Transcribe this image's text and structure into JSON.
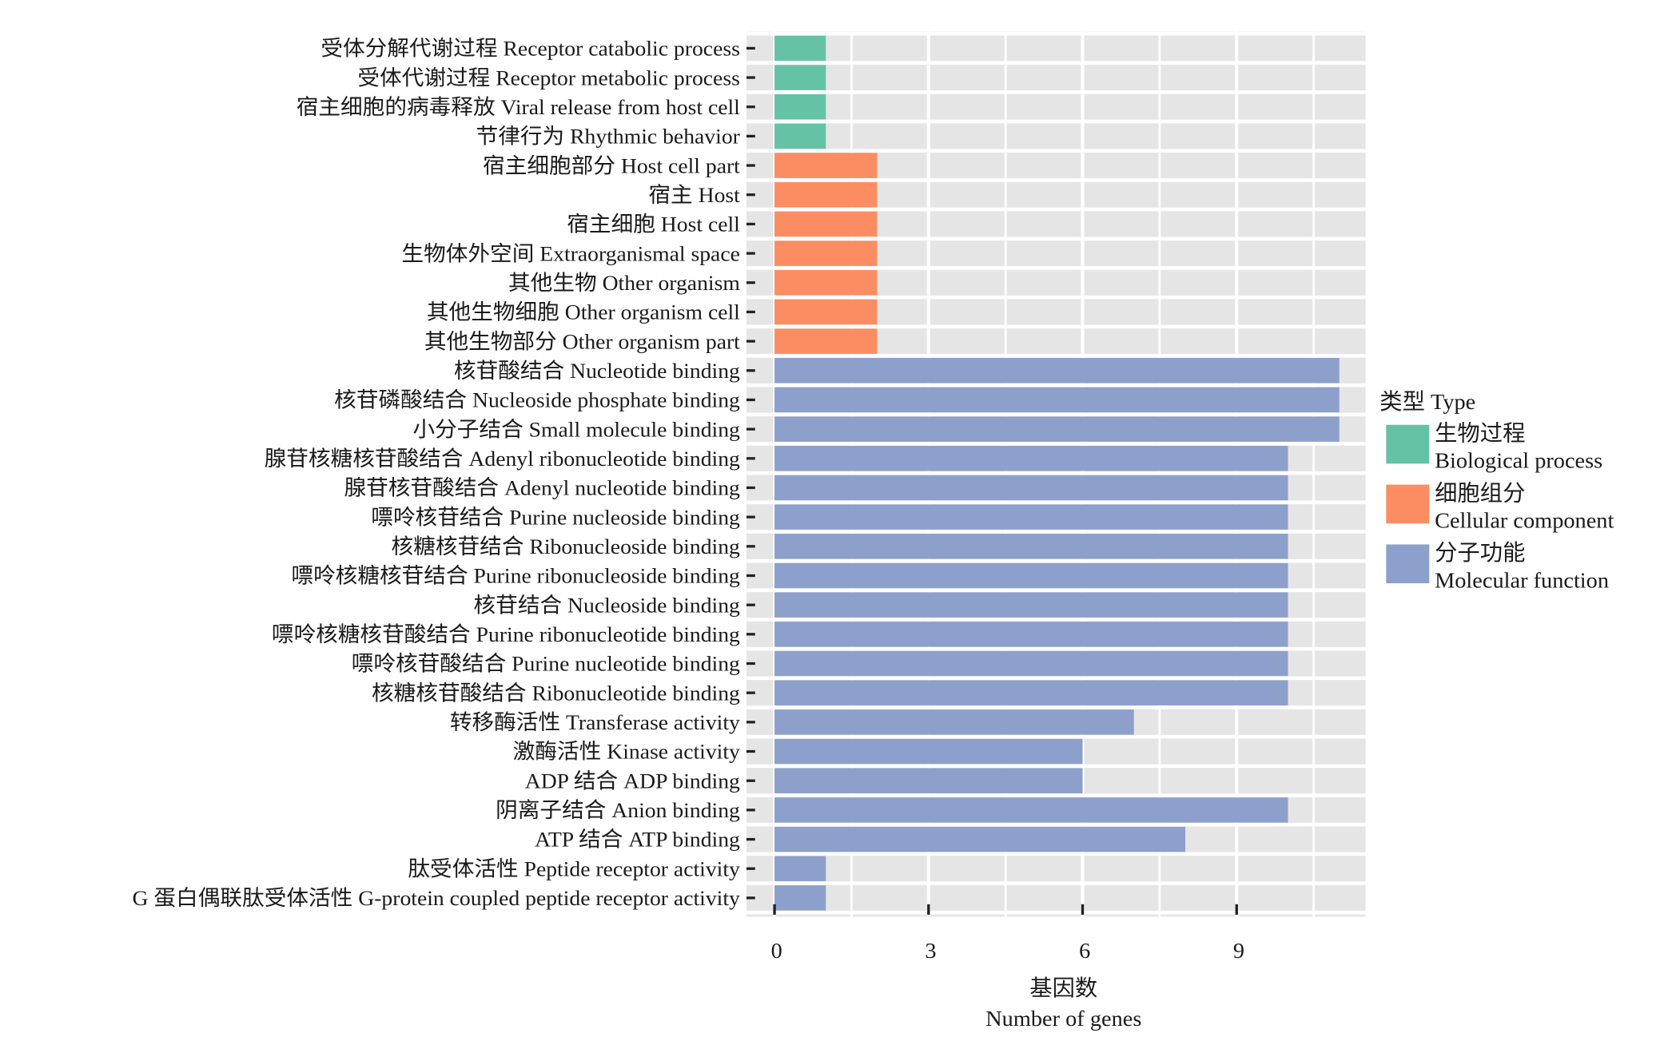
{
  "chart_data": {
    "type": "bar",
    "orientation": "horizontal",
    "xlabel_cn": "基因数",
    "xlabel": "Number of genes",
    "xlim": [
      0,
      11.5
    ],
    "xticks": [
      0,
      3,
      6,
      9
    ],
    "grid": true,
    "legend": {
      "title": "类型 Type",
      "placement": "right",
      "entries": [
        {
          "key": "BP",
          "cn": "生物过程",
          "en": "Biological process",
          "color": "#66c2a5"
        },
        {
          "key": "CC",
          "cn": "细胞组分",
          "en": "Cellular component",
          "color": "#fc8d62"
        },
        {
          "key": "MF",
          "cn": "分子功能",
          "en": "Molecular function",
          "color": "#8da0cb"
        }
      ]
    },
    "categories": [
      "受体分解代谢过程 Receptor catabolic process",
      "受体代谢过程 Receptor metabolic process",
      "宿主细胞的病毒释放 Viral release from host cell",
      "节律行为 Rhythmic behavior",
      "宿主细胞部分 Host cell part",
      "宿主 Host",
      "宿主细胞 Host cell",
      "生物体外空间 Extraorganismal space",
      "其他生物 Other organism",
      "其他生物细胞 Other organism cell",
      "其他生物部分 Other organism part",
      "核苷酸结合 Nucleotide binding",
      "核苷磷酸结合 Nucleoside phosphate binding",
      "小分子结合 Small molecule binding",
      "腺苷核糖核苷酸结合 Adenyl ribonucleotide binding",
      "腺苷核苷酸结合 Adenyl nucleotide binding",
      "嘌呤核苷结合 Purine nucleoside binding",
      "核糖核苷结合 Ribonucleoside binding",
      "嘌呤核糖核苷结合 Purine ribonucleoside binding",
      "核苷结合 Nucleoside binding",
      "嘌呤核糖核苷酸结合 Purine ribonucleotide binding",
      "嘌呤核苷酸结合 Purine nucleotide binding",
      "核糖核苷酸结合 Ribonucleotide binding",
      "转移酶活性 Transferase activity",
      "激酶活性 Kinase activity",
      "ADP 结合 ADP binding",
      "阴离子结合 Anion binding",
      "ATP 结合 ATP binding",
      "肽受体活性 Peptide receptor activity",
      "G 蛋白偶联肽受体活性 G-protein coupled peptide receptor activity"
    ],
    "values": [
      1,
      1,
      1,
      1,
      2,
      2,
      2,
      2,
      2,
      2,
      2,
      11,
      11,
      11,
      10,
      10,
      10,
      10,
      10,
      10,
      10,
      10,
      10,
      7,
      6,
      6,
      10,
      8,
      1,
      1
    ],
    "types": [
      "BP",
      "BP",
      "BP",
      "BP",
      "CC",
      "CC",
      "CC",
      "CC",
      "CC",
      "CC",
      "CC",
      "MF",
      "MF",
      "MF",
      "MF",
      "MF",
      "MF",
      "MF",
      "MF",
      "MF",
      "MF",
      "MF",
      "MF",
      "MF",
      "MF",
      "MF",
      "MF",
      "MF",
      "MF",
      "MF"
    ]
  }
}
